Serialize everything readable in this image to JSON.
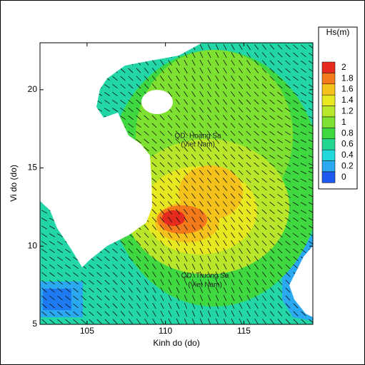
{
  "chart_data": {
    "type": "contour",
    "xlabel": "Kinh do (do)",
    "ylabel": "Vi do (do)",
    "xlim": [
      102,
      119.4
    ],
    "ylim": [
      5,
      23
    ],
    "xticks": [
      105,
      110,
      115
    ],
    "yticks": [
      5,
      10,
      15,
      20
    ],
    "colorbar": {
      "title": "Hs(m)",
      "levels": [
        2,
        1.8,
        1.6,
        1.4,
        1.2,
        1,
        0.8,
        0.6,
        0.4,
        0.2,
        0
      ],
      "colors": [
        "#e62a1e",
        "#f27a1a",
        "#f5c21c",
        "#e8e820",
        "#b8e62a",
        "#7ee030",
        "#40d840",
        "#22d690",
        "#20d8d8",
        "#2aa8f0",
        "#1e5af0"
      ]
    },
    "annotations": [
      "QD. Hoang Sa",
      "(Viet Nam)",
      "QD. Truong Sa",
      "(Viet Nam)"
    ]
  }
}
